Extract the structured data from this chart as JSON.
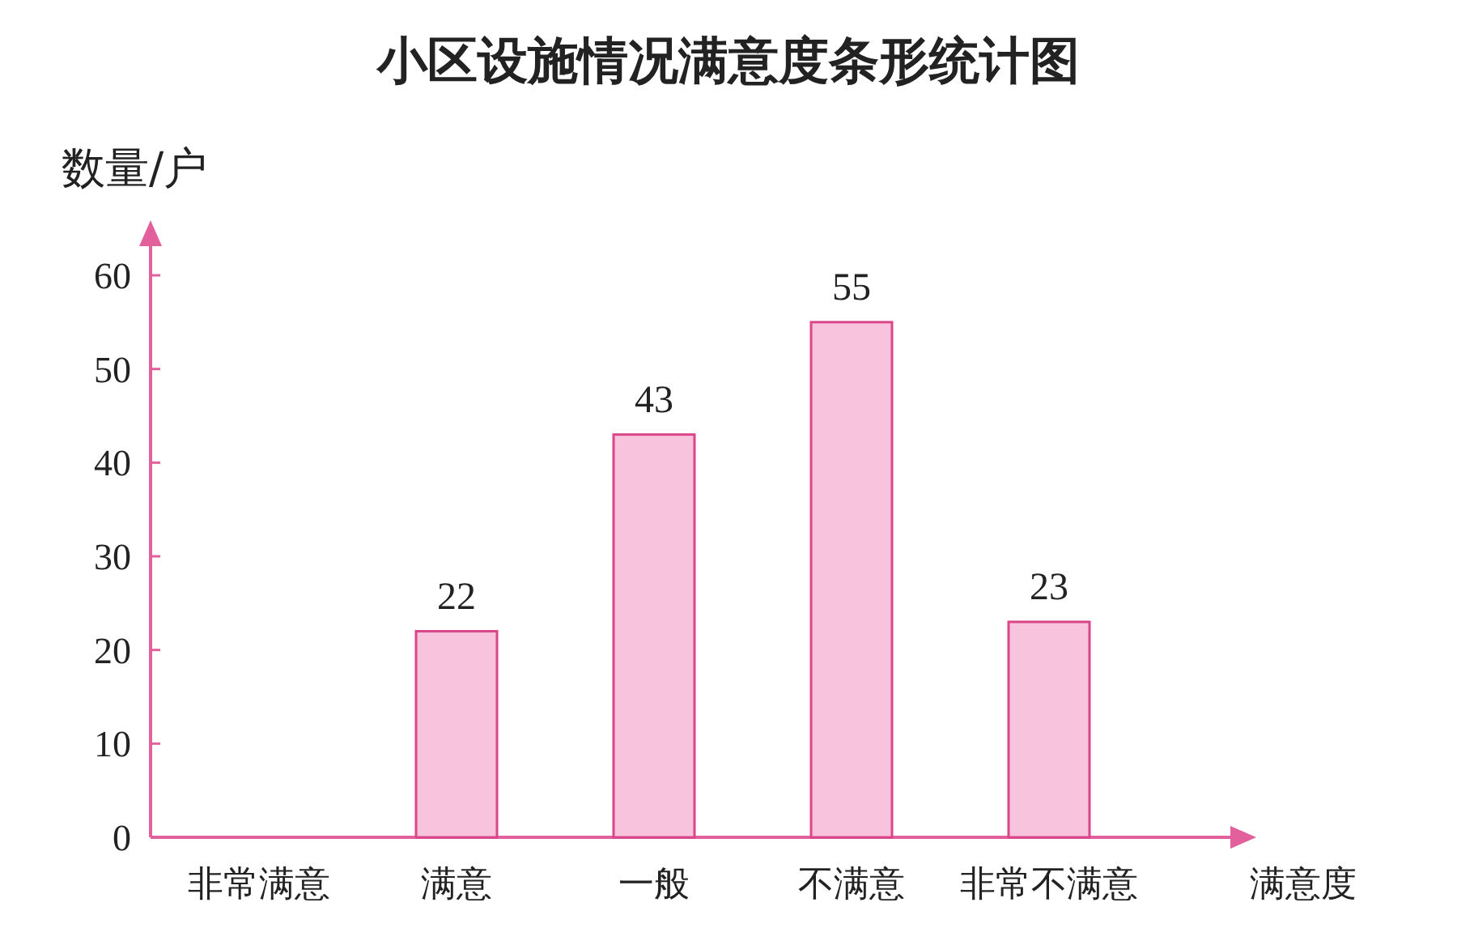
{
  "chart_data": {
    "type": "bar",
    "title": "小区设施情况满意度条形统计图",
    "xlabel": "满意度",
    "ylabel": "数量/户",
    "categories": [
      "非常满意",
      "满意",
      "一般",
      "不满意",
      "非常不满意"
    ],
    "values": [
      null,
      22,
      43,
      55,
      23
    ],
    "value_labels": [
      null,
      "22",
      "43",
      "55",
      "23"
    ],
    "color": "#f8c3dc",
    "ylim": [
      0,
      60
    ],
    "yticks": [
      0,
      10,
      20,
      30,
      40,
      50,
      60
    ]
  }
}
